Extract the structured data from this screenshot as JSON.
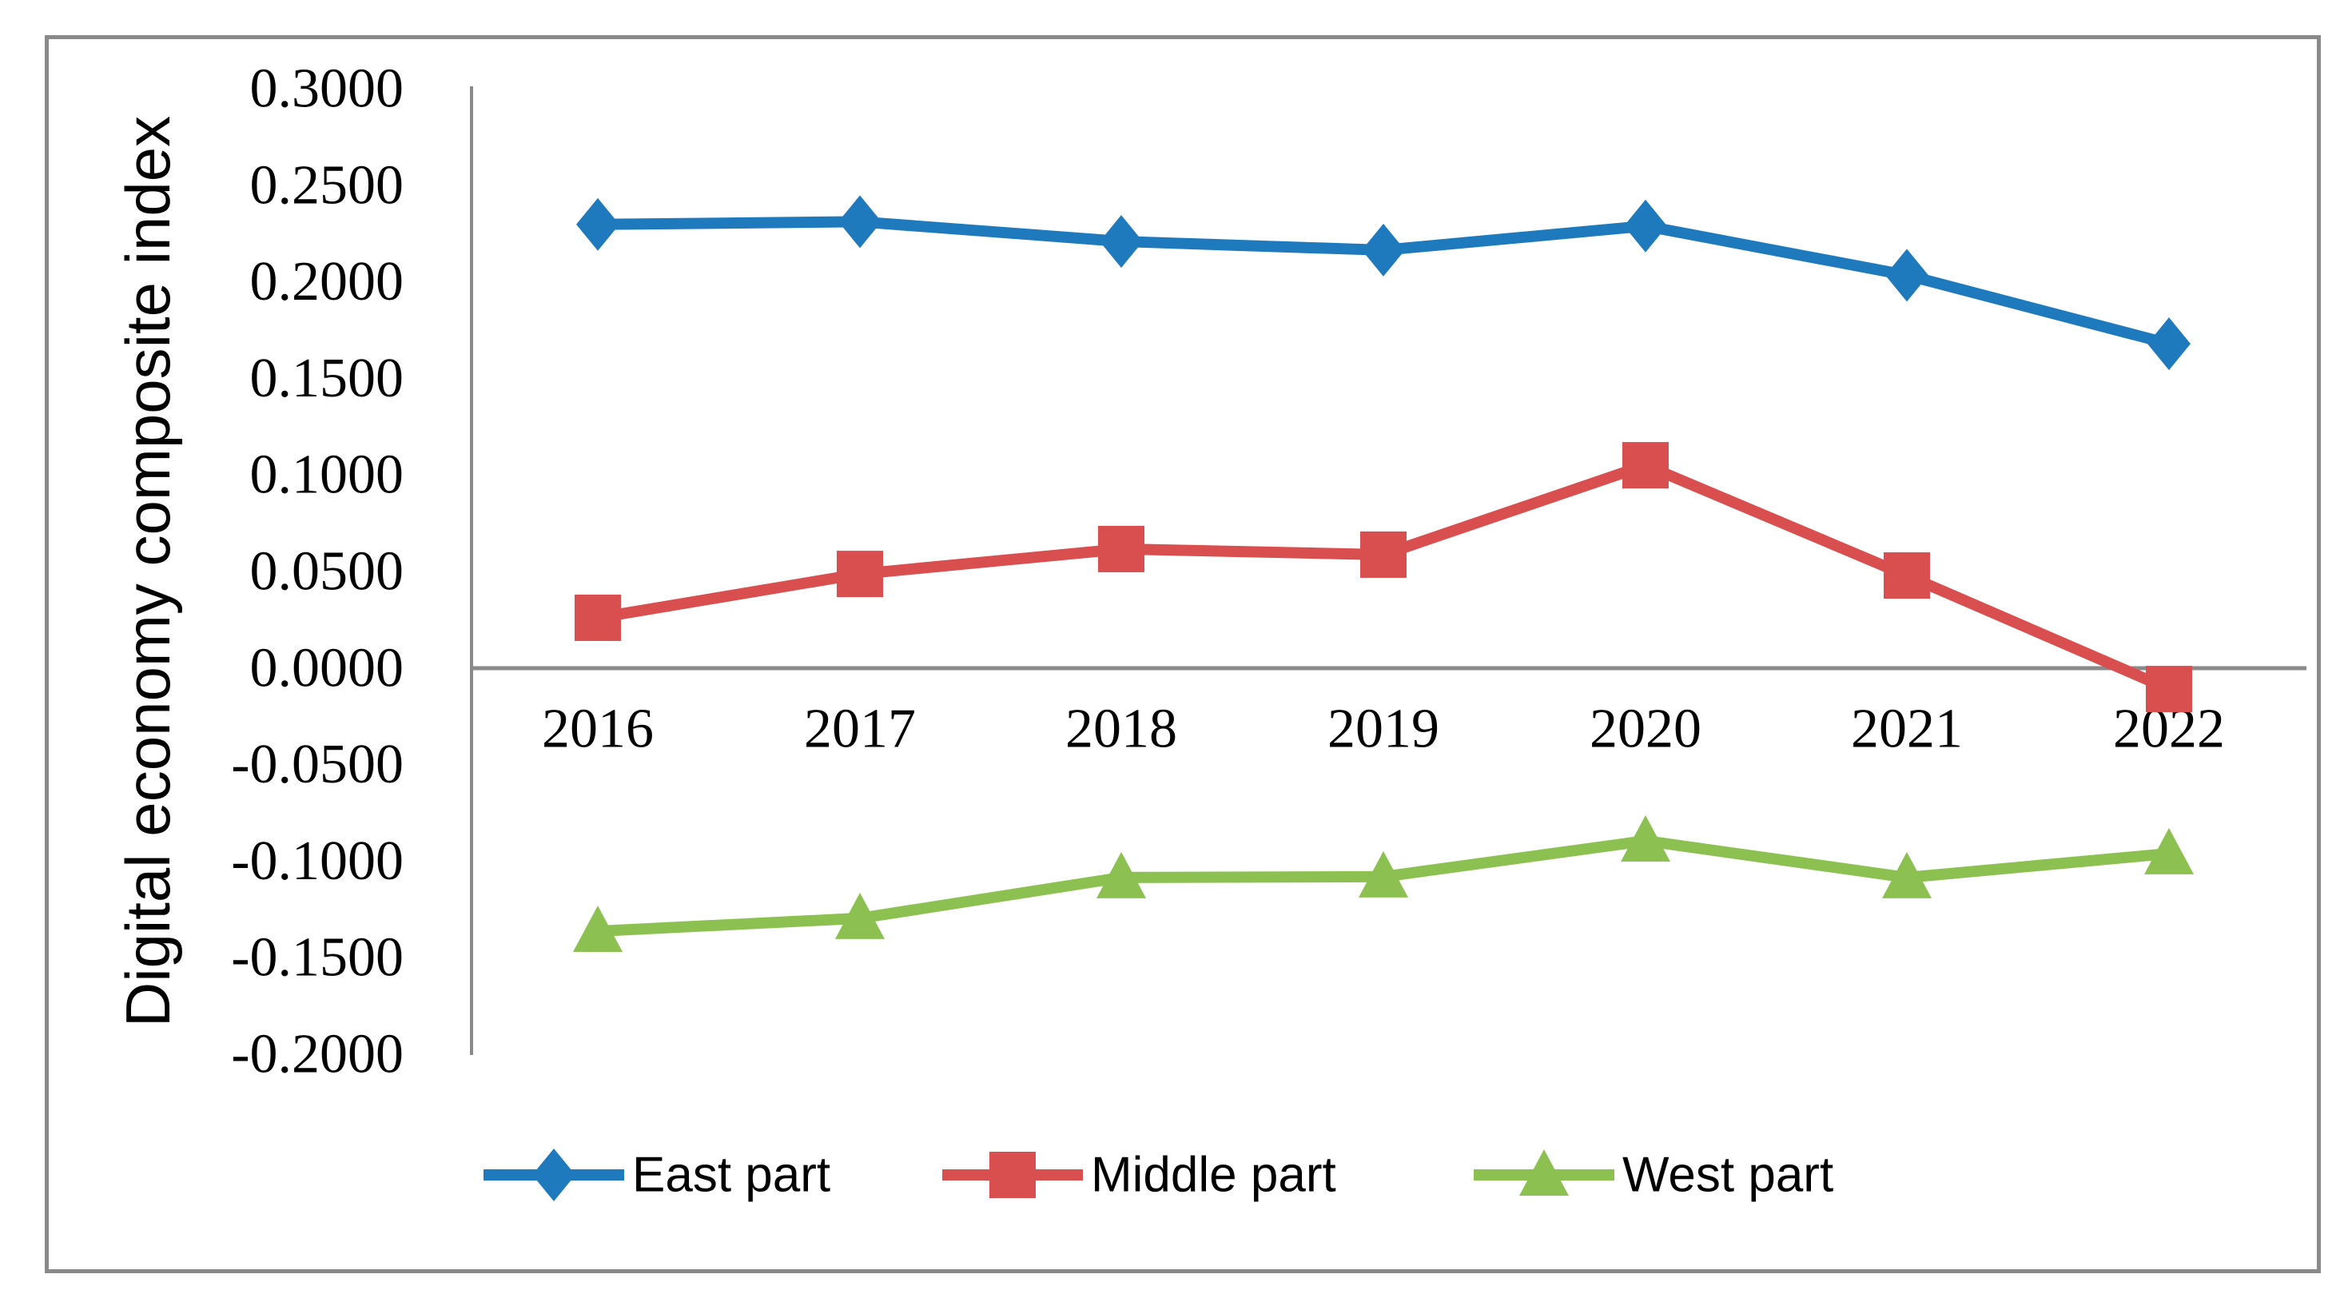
{
  "figure": {
    "background_color": "#ffffff",
    "border_color": "#8a8a8a",
    "axis_line_color": "#8a8a8a",
    "text_color": "#000000"
  },
  "chart_data": {
    "type": "line",
    "title": "",
    "xlabel": "",
    "ylabel": "Digital economy composite index",
    "categories": [
      "2016",
      "2017",
      "2018",
      "2019",
      "2020",
      "2021",
      "2022"
    ],
    "series": [
      {
        "name": "East part",
        "marker": "diamond",
        "color": "#1f7abd",
        "values": [
          0.2298,
          0.2312,
          0.221,
          0.2165,
          0.229,
          0.2035,
          0.168
        ]
      },
      {
        "name": "Middle part",
        "marker": "square",
        "color": "#d94f4f",
        "values": [
          0.0261,
          0.0488,
          0.0617,
          0.0588,
          0.1051,
          0.048,
          -0.0108
        ]
      },
      {
        "name": "West part",
        "marker": "triangle",
        "color": "#8cc152",
        "values": [
          -0.1362,
          -0.1295,
          -0.1084,
          -0.108,
          -0.0894,
          -0.1084,
          -0.096
        ]
      }
    ],
    "ylim": [
      -0.2,
      0.3
    ],
    "ytick_step": 0.05,
    "ytick_labels": [
      "0.3000",
      "0.2500",
      "0.2000",
      "0.1500",
      "0.1000",
      "0.0500",
      "0.0000",
      "-0.0500",
      "-0.1000",
      "-0.1500",
      "-0.2000"
    ],
    "grid": false,
    "legend_position": "bottom",
    "legend_labels": [
      "East part",
      "Middle part",
      "West part"
    ]
  }
}
